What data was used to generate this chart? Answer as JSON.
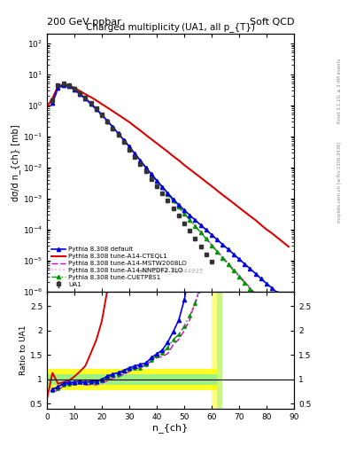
{
  "title_top_left": "200 GeV ppbar",
  "title_top_right": "Soft QCD",
  "plot_title": "Charged multiplicity (UA1, all p_{T})",
  "ylabel_main": "dσ/d n_{ch} [mb]",
  "ylabel_ratio": "Ratio to UA1",
  "xlabel": "n_{ch}",
  "watermark": "UA1_1990_S2044935",
  "right_label_top": "Rivet 3.1.10, ≥ 3.4M events",
  "right_label_bottom": "mcplots.cern.ch [arXiv:1306.3436]",
  "ua1_nch": [
    2,
    4,
    6,
    8,
    10,
    12,
    14,
    16,
    18,
    20,
    22,
    24,
    26,
    28,
    30,
    32,
    34,
    36,
    38,
    40,
    42,
    44,
    46,
    48,
    50,
    52,
    54,
    56,
    58,
    60
  ],
  "ua1_y": [
    1.5,
    4.5,
    5.0,
    4.5,
    3.5,
    2.5,
    1.8,
    1.2,
    0.8,
    0.5,
    0.3,
    0.18,
    0.11,
    0.065,
    0.038,
    0.022,
    0.013,
    0.0075,
    0.0043,
    0.0025,
    0.0015,
    0.00085,
    0.00048,
    0.00028,
    0.00016,
    9e-05,
    5e-05,
    2.8e-05,
    1.6e-05,
    9e-06
  ],
  "ua1_yerr": [
    0.15,
    0.45,
    0.5,
    0.45,
    0.35,
    0.25,
    0.18,
    0.12,
    0.08,
    0.05,
    0.03,
    0.018,
    0.011,
    0.0065,
    0.0038,
    0.0022,
    0.0013,
    0.00075,
    0.00043,
    0.00025,
    0.00015,
    8.5e-05,
    4.8e-05,
    2.8e-05,
    1.6e-05,
    9e-06,
    5e-06,
    2.8e-06,
    1.6e-06,
    9e-07
  ],
  "pythia_default_nch": [
    2,
    4,
    6,
    8,
    10,
    12,
    14,
    16,
    18,
    20,
    22,
    24,
    26,
    28,
    30,
    32,
    34,
    36,
    38,
    40,
    42,
    44,
    46,
    48,
    50,
    52,
    54,
    56,
    58,
    60,
    62,
    64,
    66,
    68,
    70,
    72,
    74,
    76,
    78,
    80,
    82,
    84,
    86,
    88
  ],
  "pythia_default_y": [
    1.2,
    3.8,
    4.6,
    4.2,
    3.3,
    2.4,
    1.7,
    1.15,
    0.77,
    0.5,
    0.32,
    0.2,
    0.125,
    0.077,
    0.047,
    0.028,
    0.017,
    0.01,
    0.0062,
    0.0038,
    0.0024,
    0.0015,
    0.00095,
    0.00062,
    0.00042,
    0.00029,
    0.0002,
    0.00014,
    9.7e-05,
    6.8e-05,
    4.7e-05,
    3.3e-05,
    2.3e-05,
    1.6e-05,
    1.1e-05,
    7.8e-06,
    5.4e-06,
    3.8e-06,
    2.6e-06,
    1.8e-06,
    1.3e-06,
    9e-07,
    6.2e-07,
    4.3e-07
  ],
  "pythia_cteql1_nch": [
    0,
    2,
    4,
    6,
    8,
    10,
    12,
    14,
    16,
    18,
    20,
    22,
    24,
    26,
    28,
    30,
    32,
    34,
    36,
    38,
    40,
    42,
    44,
    46,
    48,
    50,
    52,
    54,
    56,
    58,
    60,
    62,
    64,
    66,
    68,
    70,
    72,
    74,
    76,
    78,
    80,
    82,
    84,
    86,
    88
  ],
  "pythia_cteql1_y": [
    0.9,
    1.7,
    4.1,
    4.7,
    4.4,
    3.7,
    2.9,
    2.3,
    1.85,
    1.45,
    1.1,
    0.85,
    0.65,
    0.5,
    0.38,
    0.29,
    0.21,
    0.155,
    0.112,
    0.082,
    0.06,
    0.044,
    0.032,
    0.023,
    0.017,
    0.012,
    0.0088,
    0.0064,
    0.0047,
    0.0034,
    0.0025,
    0.0018,
    0.0013,
    0.00096,
    0.0007,
    0.00051,
    0.00037,
    0.00027,
    0.0002,
    0.00014,
    0.0001,
    7.5e-05,
    5.4e-05,
    3.9e-05,
    2.8e-05
  ],
  "pythia_mstw_nch": [
    2,
    4,
    6,
    8,
    10,
    12,
    14,
    16,
    18,
    20,
    22,
    24,
    26,
    28,
    30,
    32,
    34,
    36,
    38,
    40,
    42,
    44,
    46,
    48,
    50,
    52,
    54,
    56,
    58,
    60,
    62,
    64,
    66,
    68,
    70,
    72,
    74,
    76,
    78,
    80,
    82,
    84,
    86,
    88
  ],
  "pythia_mstw_y": [
    1.1,
    3.5,
    4.3,
    4.0,
    3.15,
    2.25,
    1.6,
    1.07,
    0.71,
    0.46,
    0.29,
    0.185,
    0.115,
    0.072,
    0.044,
    0.027,
    0.016,
    0.0097,
    0.0059,
    0.0036,
    0.0022,
    0.0013,
    0.00082,
    0.00051,
    0.00032,
    0.0002,
    0.00013,
    8.1e-05,
    5.1e-05,
    3.2e-05,
    2e-05,
    1.3e-05,
    8.2e-06,
    5.2e-06,
    3.3e-06,
    2.1e-06,
    1.3e-06,
    8.5e-07,
    5.4e-07,
    3.4e-07,
    2.2e-07,
    1.4e-07,
    9e-08,
    5.8e-08
  ],
  "pythia_nnpdf_nch": [
    2,
    4,
    6,
    8,
    10,
    12,
    14,
    16,
    18,
    20,
    22,
    24,
    26,
    28,
    30,
    32,
    34,
    36,
    38,
    40,
    42,
    44,
    46,
    48,
    50,
    52,
    54,
    56,
    58,
    60,
    62,
    64,
    66,
    68,
    70,
    72,
    74,
    76,
    78,
    80,
    82,
    84,
    86,
    88
  ],
  "pythia_nnpdf_y": [
    1.15,
    3.6,
    4.4,
    4.1,
    3.22,
    2.3,
    1.63,
    1.09,
    0.72,
    0.46,
    0.295,
    0.188,
    0.118,
    0.073,
    0.045,
    0.027,
    0.016,
    0.0098,
    0.006,
    0.0037,
    0.0023,
    0.0014,
    0.00087,
    0.00054,
    0.00034,
    0.00021,
    0.00013,
    8.3e-05,
    5.2e-05,
    3.3e-05,
    2.1e-05,
    1.3e-05,
    8.3e-06,
    5.2e-06,
    3.3e-06,
    2.1e-06,
    1.3e-06,
    8.5e-07,
    5.4e-07,
    3.4e-07,
    2.2e-07,
    1.4e-07,
    8.8e-08,
    5.6e-08
  ],
  "pythia_cuetp8_nch": [
    2,
    4,
    6,
    8,
    10,
    12,
    14,
    16,
    18,
    20,
    22,
    24,
    26,
    28,
    30,
    32,
    34,
    36,
    38,
    40,
    42,
    44,
    46,
    48,
    50,
    52,
    54,
    56,
    58,
    60,
    62,
    64,
    66,
    68,
    70,
    72,
    74,
    76,
    78,
    80,
    82,
    84,
    86,
    88
  ],
  "pythia_cuetp8_y": [
    1.18,
    3.7,
    4.45,
    4.1,
    3.25,
    2.35,
    1.68,
    1.12,
    0.75,
    0.485,
    0.31,
    0.196,
    0.122,
    0.076,
    0.046,
    0.027,
    0.016,
    0.0098,
    0.006,
    0.0037,
    0.0023,
    0.00141,
    0.00087,
    0.000538,
    0.000333,
    0.000207,
    0.000128,
    7.97e-05,
    4.96e-05,
    3.09e-05,
    1.93e-05,
    1.21e-05,
    7.5e-06,
    4.7e-06,
    3e-06,
    1.9e-06,
    1.2e-06,
    7.5e-07,
    4.7e-07,
    3e-07,
    1.9e-07,
    1.2e-07,
    7.6e-08,
    4.9e-08
  ],
  "colors": {
    "ua1": "#333333",
    "pythia_default": "#0000dd",
    "pythia_cteql1": "#dd0000",
    "pythia_mstw": "#cc00cc",
    "pythia_nnpdf": "#ff99ff",
    "pythia_cuetp8": "#009900"
  },
  "ylim_main": [
    1e-06,
    200
  ],
  "xlim": [
    0,
    90
  ],
  "ratio_ylim": [
    0.4,
    2.8
  ],
  "ratio_yticks": [
    0.5,
    1.0,
    1.5,
    2.0,
    2.5
  ]
}
